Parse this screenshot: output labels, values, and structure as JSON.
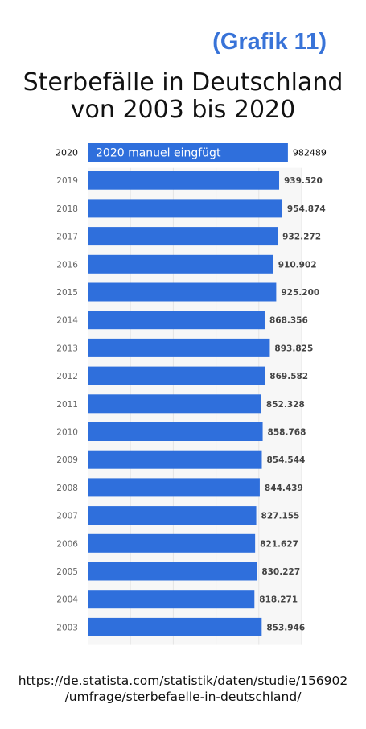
{
  "header": {
    "label": "(Grafik 11)",
    "title_line1": "Sterbefälle in Deutschland",
    "title_line2": "von 2003 bis 2020"
  },
  "chart_data": {
    "type": "bar",
    "orientation": "horizontal",
    "categories": [
      "2020",
      "2019",
      "2018",
      "2017",
      "2016",
      "2015",
      "2014",
      "2013",
      "2012",
      "2011",
      "2010",
      "2009",
      "2008",
      "2007",
      "2006",
      "2005",
      "2004",
      "2003"
    ],
    "values": [
      982489,
      939520,
      954874,
      932272,
      910902,
      925200,
      868356,
      893825,
      869582,
      852328,
      858768,
      854544,
      844439,
      827155,
      821627,
      830227,
      818271,
      853946
    ],
    "value_labels": [
      "982489",
      "939.520",
      "954.874",
      "932.272",
      "910.902",
      "925.200",
      "868.356",
      "893.825",
      "869.582",
      "852.328",
      "858.768",
      "854.544",
      "844.439",
      "827.155",
      "821.627",
      "830.227",
      "818.271",
      "853.946"
    ],
    "bar_color": "#2f6fdc",
    "annotation": "2020 manuel eingfügt",
    "xlim": [
      0,
      1050000
    ]
  },
  "footer": {
    "source_line1": "https://de.statista.com/statistik/daten/studie/156902",
    "source_line2": "/umfrage/sterbefaelle-in-deutschland/"
  }
}
